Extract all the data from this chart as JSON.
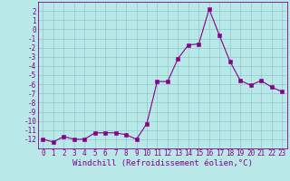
{
  "x": [
    0,
    1,
    2,
    3,
    4,
    5,
    6,
    7,
    8,
    9,
    10,
    11,
    12,
    13,
    14,
    15,
    16,
    17,
    18,
    19,
    20,
    21,
    22,
    23
  ],
  "y": [
    -12,
    -12.3,
    -11.7,
    -12,
    -12,
    -11.3,
    -11.3,
    -11.3,
    -11.5,
    -12,
    -10.3,
    -5.7,
    -5.7,
    -3.2,
    -1.7,
    -1.6,
    2.2,
    -0.7,
    -3.5,
    -5.6,
    -6.1,
    -5.6,
    -6.3,
    -6.8
  ],
  "line_color": "#880088",
  "marker_color": "#880088",
  "bg_color": "#b8e8e8",
  "grid_color": "#90c8c8",
  "xlabel": "Windchill (Refroidissement éolien,°C)",
  "ylim": [
    -13,
    3
  ],
  "xlim": [
    -0.5,
    23.5
  ],
  "yticks": [
    2,
    1,
    0,
    -1,
    -2,
    -3,
    -4,
    -5,
    -6,
    -7,
    -8,
    -9,
    -10,
    -11,
    -12
  ],
  "xticks": [
    0,
    1,
    2,
    3,
    4,
    5,
    6,
    7,
    8,
    9,
    10,
    11,
    12,
    13,
    14,
    15,
    16,
    17,
    18,
    19,
    20,
    21,
    22,
    23
  ],
  "tick_fontsize": 5.5,
  "xlabel_fontsize": 6.5
}
